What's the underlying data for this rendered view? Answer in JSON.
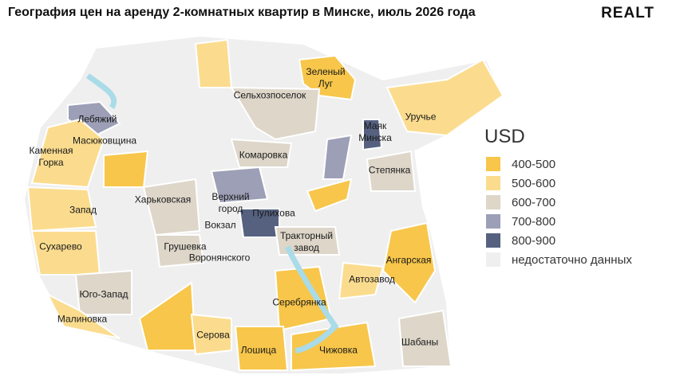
{
  "header": {
    "title": "География цен на аренду 2-комнатных квартир в Минске, июль 2026 года",
    "logo": "REALT"
  },
  "legend": {
    "title": "USD",
    "items": [
      {
        "label": "400-500",
        "color": "#f7c64a"
      },
      {
        "label": "500-600",
        "color": "#fbdc8e"
      },
      {
        "label": "600-700",
        "color": "#ddd6c9"
      },
      {
        "label": "700-800",
        "color": "#9c9fb6"
      },
      {
        "label": "800-900",
        "color": "#55617f"
      },
      {
        "label": "недостаточно данных",
        "color": "#efefef"
      }
    ]
  },
  "districts": [
    {
      "label": "Зеленый Луг"
    },
    {
      "label": "Сельхозпоселок"
    },
    {
      "label": "Лебяжий"
    },
    {
      "label": "Маяк Минска"
    },
    {
      "label": "Уручье"
    },
    {
      "label": "Масюковщина"
    },
    {
      "label": "Каменная Горка"
    },
    {
      "label": "Комаровка"
    },
    {
      "label": "Степянка"
    },
    {
      "label": "Харьковская"
    },
    {
      "label": "Верхний город"
    },
    {
      "label": "Запад"
    },
    {
      "label": "Пулихова"
    },
    {
      "label": "Вокзал"
    },
    {
      "label": "Тракторный завод"
    },
    {
      "label": "Грушевка"
    },
    {
      "label": "Сухарево"
    },
    {
      "label": "Воронянского"
    },
    {
      "label": "Ангарская"
    },
    {
      "label": "Автозавод"
    },
    {
      "label": "Юго-Запад"
    },
    {
      "label": "Серебрянка"
    },
    {
      "label": "Малиновка"
    },
    {
      "label": "Серова"
    },
    {
      "label": "Шабаны"
    },
    {
      "label": "Лошица"
    },
    {
      "label": "Чижовка"
    }
  ]
}
